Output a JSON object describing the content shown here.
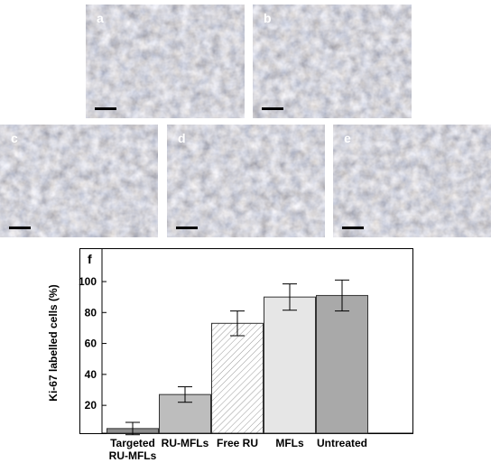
{
  "panels": [
    {
      "label": "a"
    },
    {
      "label": "b"
    },
    {
      "label": "c"
    },
    {
      "label": "d"
    },
    {
      "label": "e"
    }
  ],
  "chart_data": {
    "type": "bar",
    "panel_label": "f",
    "y_label": "Ki-67 labelled cells (%)",
    "categories": [
      "Targeted RU-MFLs",
      "RU-MFLs",
      "Free RU",
      "MFLs",
      "Untreated"
    ],
    "values": [
      5,
      27,
      73,
      90,
      91
    ],
    "errors": [
      4,
      5,
      8,
      8.5,
      10
    ],
    "colors": [
      "#8c8c8c",
      "#bdbdbd",
      "#ffffff",
      "#e6e6e6",
      "#a9a9a9"
    ],
    "patterns": [
      "solid",
      "solid",
      "hatch",
      "solid",
      "solid"
    ],
    "ylim": [
      2,
      121
    ],
    "yticks": [
      20,
      40,
      60,
      80,
      100
    ]
  }
}
